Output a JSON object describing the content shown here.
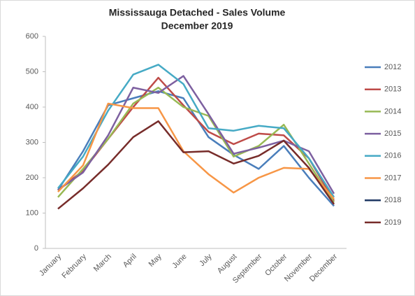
{
  "chart_data": {
    "type": "line",
    "title": "Mississauga Detached - Sales Volume",
    "subtitle": "December 2019",
    "categories": [
      "January",
      "February",
      "March",
      "April",
      "May",
      "June",
      "July",
      "August",
      "September",
      "October",
      "November",
      "December"
    ],
    "series": [
      {
        "name": "2012",
        "color": "#4a7ebb",
        "values": [
          165,
          275,
          405,
          425,
          445,
          425,
          315,
          265,
          225,
          290,
          200,
          120
        ]
      },
      {
        "name": "2013",
        "color": "#be4b48",
        "values": [
          165,
          220,
          310,
          400,
          483,
          405,
          330,
          295,
          325,
          320,
          255,
          135
        ]
      },
      {
        "name": "2014",
        "color": "#98b954",
        "values": [
          145,
          225,
          310,
          410,
          455,
          400,
          375,
          260,
          290,
          350,
          240,
          130
        ]
      },
      {
        "name": "2015",
        "color": "#7d60a0",
        "values": [
          165,
          215,
          320,
          455,
          440,
          488,
          380,
          268,
          285,
          305,
          275,
          155
        ]
      },
      {
        "name": "2016",
        "color": "#46aac5",
        "values": [
          170,
          260,
          390,
          492,
          520,
          465,
          340,
          333,
          347,
          340,
          255,
          145
        ]
      },
      {
        "name": "2017",
        "color": "#f79646",
        "values": [
          160,
          235,
          410,
          397,
          397,
          275,
          210,
          158,
          200,
          228,
          225,
          140
        ]
      },
      {
        "name": "2018",
        "color": "#1f3864",
        "values": [
          null,
          null,
          null,
          null,
          null,
          null,
          null,
          null,
          null,
          null,
          null,
          null
        ]
      },
      {
        "name": "2019",
        "color": "#772c2a",
        "values": [
          112,
          170,
          237,
          315,
          360,
          272,
          275,
          240,
          262,
          305,
          228,
          125
        ]
      }
    ],
    "ylim": [
      0,
      600
    ],
    "yticks": [
      0,
      100,
      200,
      300,
      400,
      500,
      600
    ],
    "grid": false,
    "legend": "right"
  }
}
